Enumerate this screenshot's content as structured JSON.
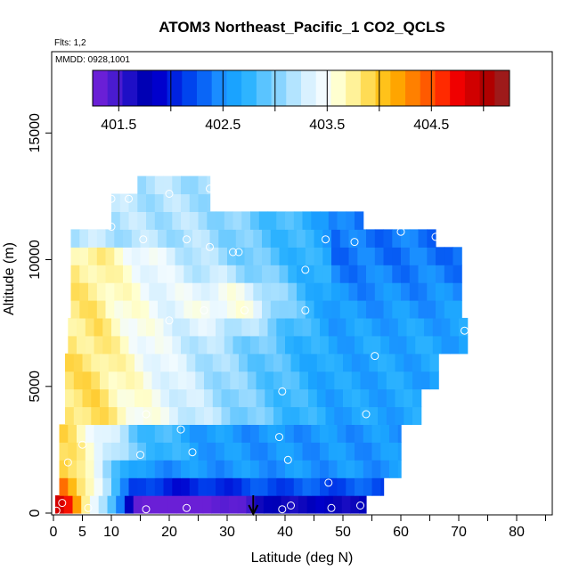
{
  "chart_data": {
    "type": "heatmap",
    "title": "ATOM3 Northeast_Pacific_1 CO2_QCLS",
    "annotations": [
      "Flts: 1,2",
      "MMDD: 0928,1001"
    ],
    "xlabel": "Latitude (deg N)",
    "ylabel": "Altitude (m)",
    "xlim": [
      0,
      85
    ],
    "ylim": [
      0,
      17500
    ],
    "xticks": [
      0,
      5,
      10,
      20,
      30,
      40,
      50,
      60,
      70,
      80
    ],
    "xtick_labels": [
      "0",
      "5",
      "10",
      "20",
      "30",
      "40",
      "50",
      "60",
      "70",
      "80"
    ],
    "yticks": [
      0,
      5000,
      10000,
      15000
    ],
    "ytick_labels": [
      "0",
      "5000",
      "10000",
      "15000"
    ],
    "colorbar": {
      "min": 401.25,
      "max": 405.25,
      "ticks": [
        401.5,
        402.5,
        403.5,
        404.5
      ],
      "tick_labels": [
        "401.5",
        "402.5",
        "403.5",
        "404.5"
      ],
      "colors": [
        "#6a1fd6",
        "#4a1bd0",
        "#1e0fc6",
        "#0000b4",
        "#0000cd",
        "#0022e0",
        "#0044ee",
        "#0a66f7",
        "#1a8cff",
        "#1aa3ff",
        "#2eb4ff",
        "#5ac4ff",
        "#88d4ff",
        "#b3e4ff",
        "#d9f1ff",
        "#f2fbff",
        "#ffffd0",
        "#fff299",
        "#ffdc55",
        "#ffc21a",
        "#ffa500",
        "#ff8000",
        "#ff5a00",
        "#ff2a00",
        "#f00000",
        "#d00000",
        "#b00000",
        "#9e1a1a"
      ]
    },
    "flight_marker_lat": 34.5,
    "sample_points": [
      [
        0.5,
        100
      ],
      [
        6,
        200
      ],
      [
        16,
        150
      ],
      [
        23,
        200
      ],
      [
        39.5,
        150
      ],
      [
        41,
        300
      ],
      [
        48,
        200
      ],
      [
        53,
        300
      ],
      [
        1.5,
        400
      ],
      [
        47.5,
        1200
      ],
      [
        2.5,
        2000
      ],
      [
        15,
        2300
      ],
      [
        24,
        2400
      ],
      [
        40.5,
        2100
      ],
      [
        5,
        2700
      ],
      [
        22,
        3300
      ],
      [
        39,
        3000
      ],
      [
        16,
        3900
      ],
      [
        54,
        3900
      ],
      [
        39.5,
        4800
      ],
      [
        55.5,
        6200
      ],
      [
        20,
        7600
      ],
      [
        26,
        8000
      ],
      [
        33,
        8000
      ],
      [
        43.5,
        8000
      ],
      [
        71,
        7200
      ],
      [
        31,
        10300
      ],
      [
        32,
        10300
      ],
      [
        43.5,
        9600
      ],
      [
        15.5,
        10800
      ],
      [
        23,
        10800
      ],
      [
        27,
        10500
      ],
      [
        10,
        11300
      ],
      [
        47,
        10800
      ],
      [
        52,
        10700
      ],
      [
        60,
        11100
      ],
      [
        66,
        10900
      ],
      [
        70,
        10800
      ],
      [
        13,
        12400
      ],
      [
        10,
        12400
      ],
      [
        20,
        12600
      ],
      [
        27,
        12800
      ]
    ]
  }
}
